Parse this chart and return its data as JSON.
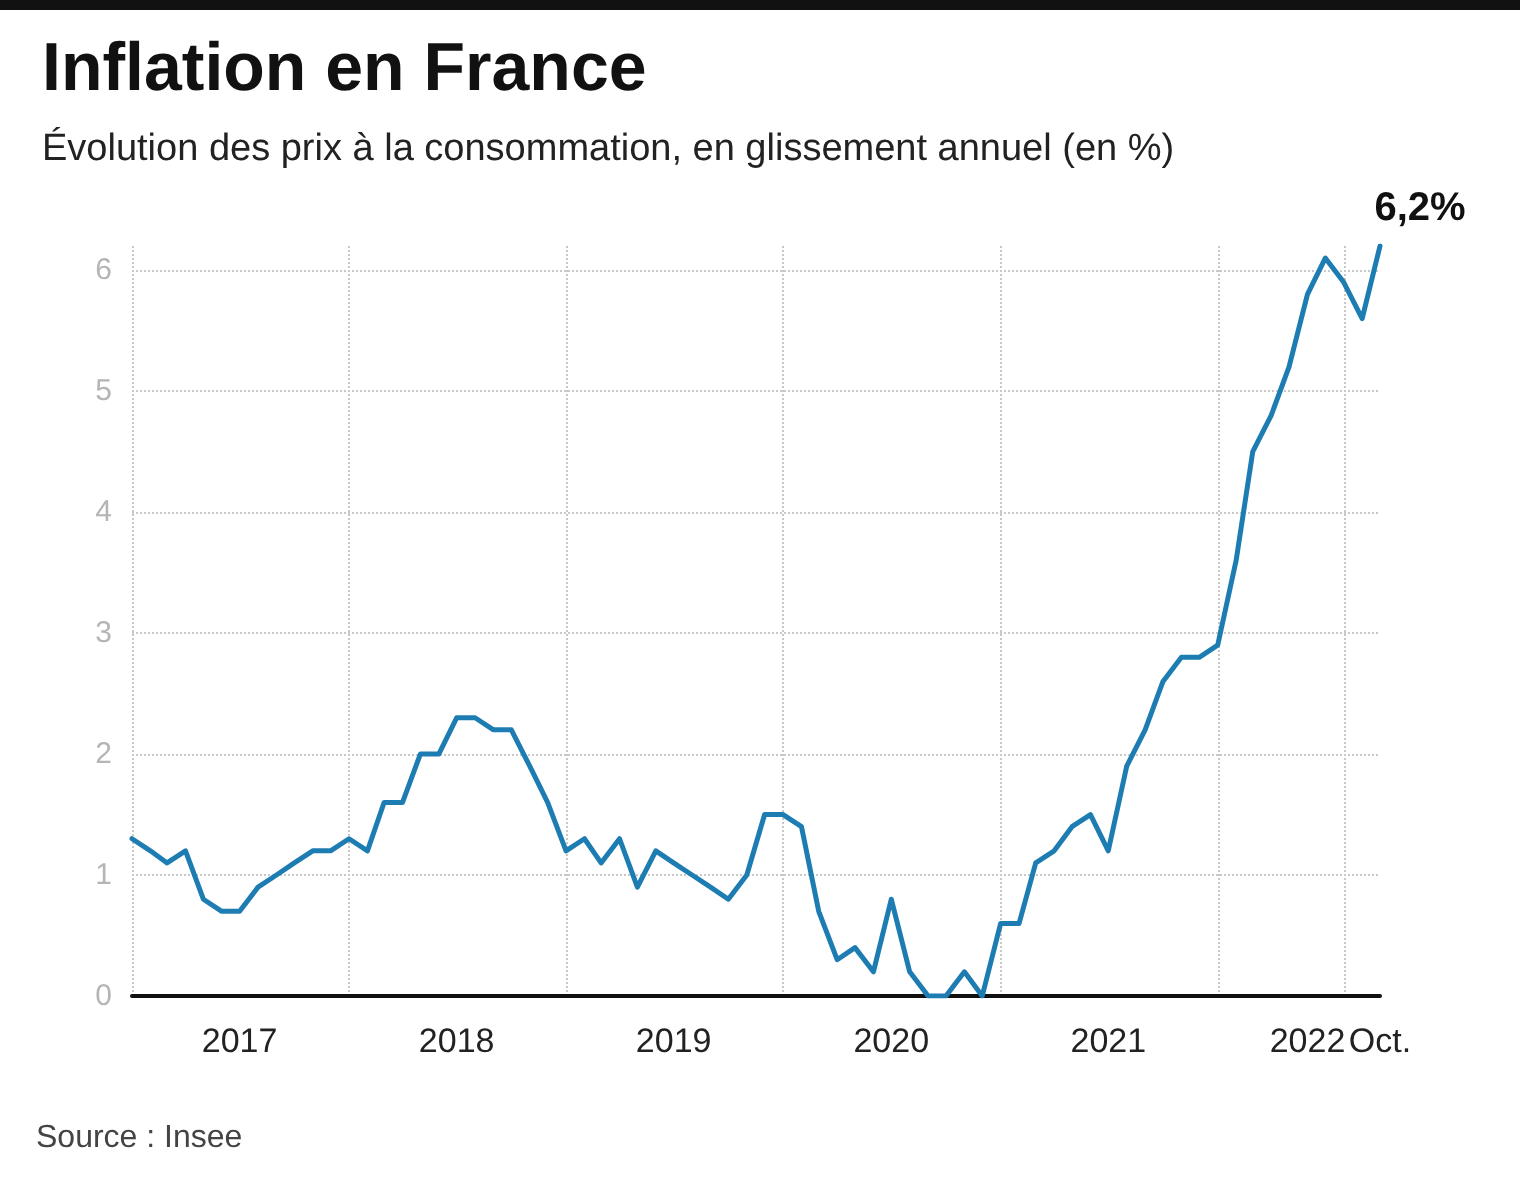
{
  "chart_data": {
    "type": "line",
    "title": "Inflation en France",
    "subtitle": "Évolution des prix à la consommation, en glissement annuel (en %)",
    "x": [
      "2017-01",
      "2017-02",
      "2017-03",
      "2017-04",
      "2017-05",
      "2017-06",
      "2017-07",
      "2017-08",
      "2017-09",
      "2017-10",
      "2017-11",
      "2017-12",
      "2018-01",
      "2018-02",
      "2018-03",
      "2018-04",
      "2018-05",
      "2018-06",
      "2018-07",
      "2018-08",
      "2018-09",
      "2018-10",
      "2018-11",
      "2018-12",
      "2019-01",
      "2019-02",
      "2019-03",
      "2019-04",
      "2019-05",
      "2019-06",
      "2019-07",
      "2019-08",
      "2019-09",
      "2019-10",
      "2019-11",
      "2019-12",
      "2020-01",
      "2020-02",
      "2020-03",
      "2020-04",
      "2020-05",
      "2020-06",
      "2020-07",
      "2020-08",
      "2020-09",
      "2020-10",
      "2020-11",
      "2020-12",
      "2021-01",
      "2021-02",
      "2021-03",
      "2021-04",
      "2021-05",
      "2021-06",
      "2021-07",
      "2021-08",
      "2021-09",
      "2021-10",
      "2021-11",
      "2021-12",
      "2022-01",
      "2022-02",
      "2022-03",
      "2022-04",
      "2022-05",
      "2022-06",
      "2022-07",
      "2022-08",
      "2022-09",
      "2022-10"
    ],
    "series": [
      {
        "color": "#1d7db3",
        "values": [
          1.3,
          1.2,
          1.1,
          1.2,
          0.8,
          0.7,
          0.7,
          0.9,
          1.0,
          1.1,
          1.2,
          1.2,
          1.3,
          1.2,
          1.6,
          1.6,
          2.0,
          2.0,
          2.3,
          2.3,
          2.2,
          2.2,
          1.9,
          1.6,
          1.2,
          1.3,
          1.1,
          1.3,
          0.9,
          1.2,
          1.1,
          1.0,
          0.9,
          0.8,
          1.0,
          1.5,
          1.5,
          1.4,
          0.7,
          0.3,
          0.4,
          0.2,
          0.8,
          0.2,
          0.0,
          0.0,
          0.2,
          0.0,
          0.6,
          0.6,
          1.1,
          1.2,
          1.4,
          1.5,
          1.2,
          1.9,
          2.2,
          2.6,
          2.8,
          2.8,
          2.9,
          3.6,
          4.5,
          4.8,
          5.2,
          5.8,
          6.1,
          5.9,
          5.6,
          6.2
        ]
      }
    ],
    "xlim": [
      "2017-01",
      "2022-10"
    ],
    "xticks": [
      {
        "value": "2017-01",
        "label": null
      },
      {
        "value": "2017-07",
        "label": "2017"
      },
      {
        "value": "2018-01",
        "label": null
      },
      {
        "value": "2018-07",
        "label": "2018"
      },
      {
        "value": "2019-01",
        "label": null
      },
      {
        "value": "2019-07",
        "label": "2019"
      },
      {
        "value": "2020-01",
        "label": null
      },
      {
        "value": "2020-07",
        "label": "2020"
      },
      {
        "value": "2021-01",
        "label": null
      },
      {
        "value": "2021-07",
        "label": "2021"
      },
      {
        "value": "2022-01",
        "label": null
      },
      {
        "value": "2022-06",
        "label": "2022"
      },
      {
        "value": "2022-08",
        "label": null
      },
      {
        "value": "2022-10",
        "label": "Oct."
      }
    ],
    "ylim": [
      0,
      6.2
    ],
    "yticks": [
      0,
      1,
      2,
      3,
      4,
      5,
      6
    ],
    "grid": true,
    "marker": "none",
    "line_style": "solid",
    "annotations": [
      {
        "text": "6,2%",
        "x": "2022-10",
        "y": 6.2
      },
      "Source : Insee"
    ]
  }
}
